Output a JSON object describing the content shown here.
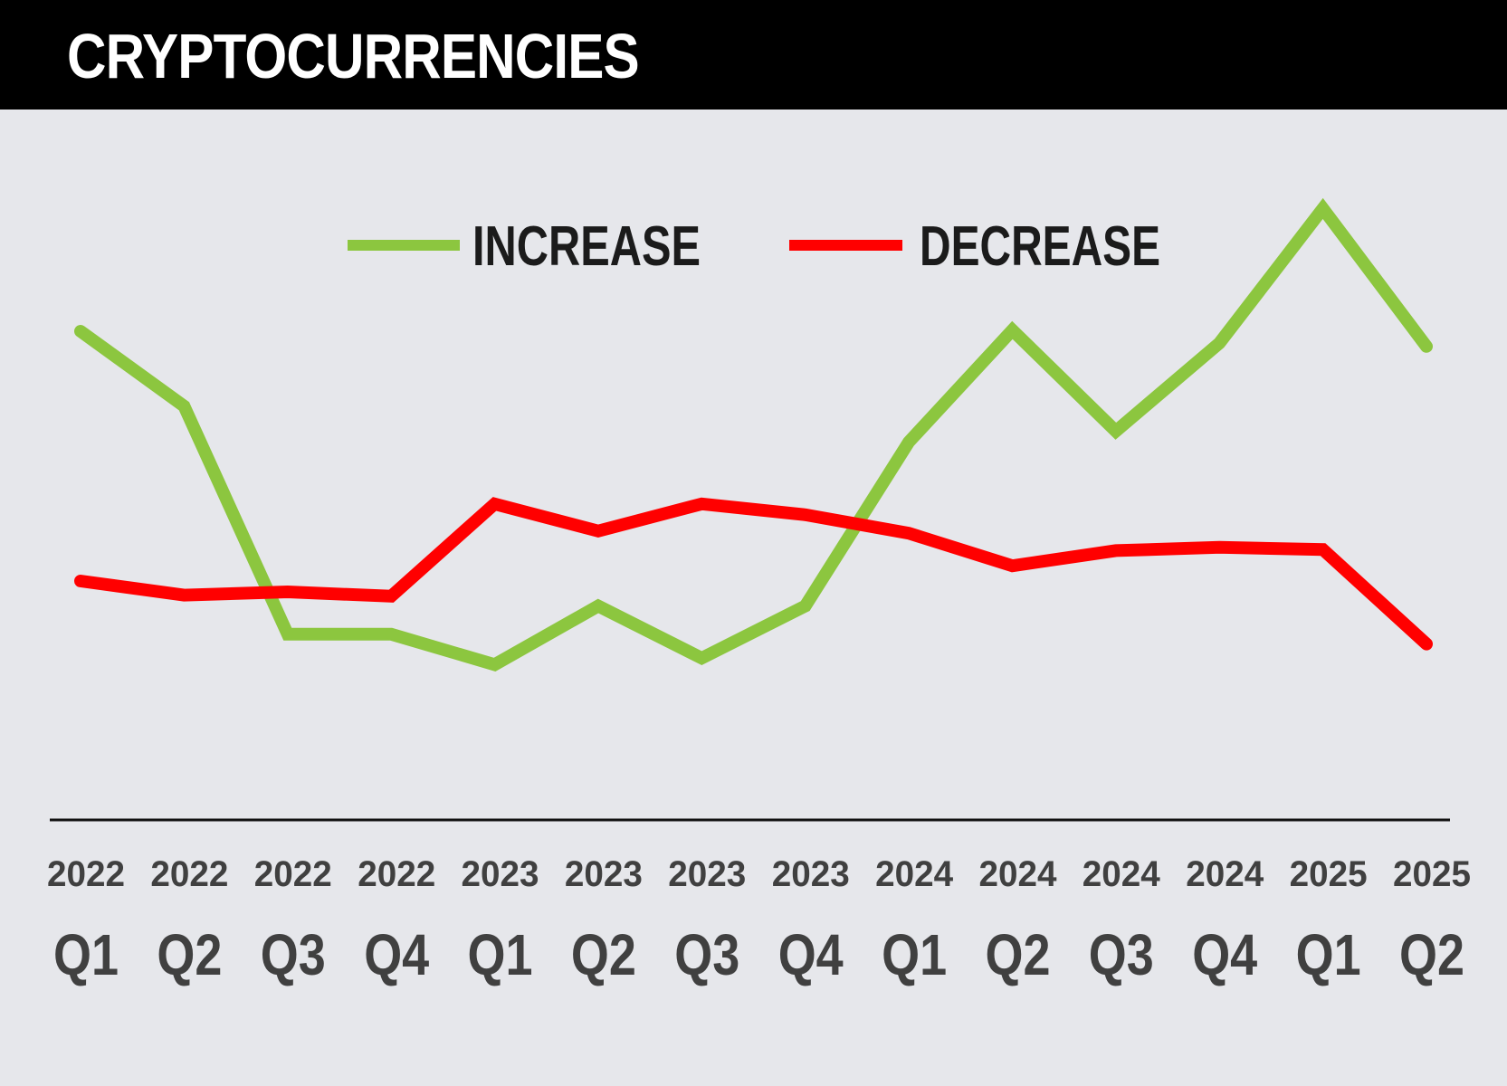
{
  "title": "CRYPTOCURRENCIES",
  "colors": {
    "header_bg": "#000000",
    "background": "#e6e7eb",
    "axis": "#111111",
    "tick_text": "#404040",
    "legend_text": "#1b1b1b"
  },
  "chart_data": {
    "type": "line",
    "categories": [
      {
        "year": "2022",
        "quarter": "Q1"
      },
      {
        "year": "2022",
        "quarter": "Q2"
      },
      {
        "year": "2022",
        "quarter": "Q3"
      },
      {
        "year": "2022",
        "quarter": "Q4"
      },
      {
        "year": "2023",
        "quarter": "Q1"
      },
      {
        "year": "2023",
        "quarter": "Q2"
      },
      {
        "year": "2023",
        "quarter": "Q3"
      },
      {
        "year": "2023",
        "quarter": "Q4"
      },
      {
        "year": "2024",
        "quarter": "Q1"
      },
      {
        "year": "2024",
        "quarter": "Q2"
      },
      {
        "year": "2024",
        "quarter": "Q3"
      },
      {
        "year": "2024",
        "quarter": "Q4"
      },
      {
        "year": "2025",
        "quarter": "Q1"
      },
      {
        "year": "2025",
        "quarter": "Q2"
      }
    ],
    "series": [
      {
        "name": "INCREASE",
        "color": "#8cc63f",
        "values": [
          69.5,
          62.6,
          41.6,
          41.6,
          38.8,
          44.2,
          39.4,
          44.2,
          59.3,
          69.6,
          60.3,
          68.4,
          80.8,
          68.1
        ]
      },
      {
        "name": "DECREASE",
        "color": "#ff0000",
        "values": [
          46.5,
          45.2,
          45.5,
          45.1,
          53.6,
          51.1,
          53.6,
          52.6,
          50.9,
          47.9,
          49.3,
          49.6,
          49.4,
          40.7
        ]
      }
    ],
    "ylim": [
      0,
      100
    ],
    "y_axis_visible": false,
    "grid": false,
    "legend": "top-center"
  }
}
